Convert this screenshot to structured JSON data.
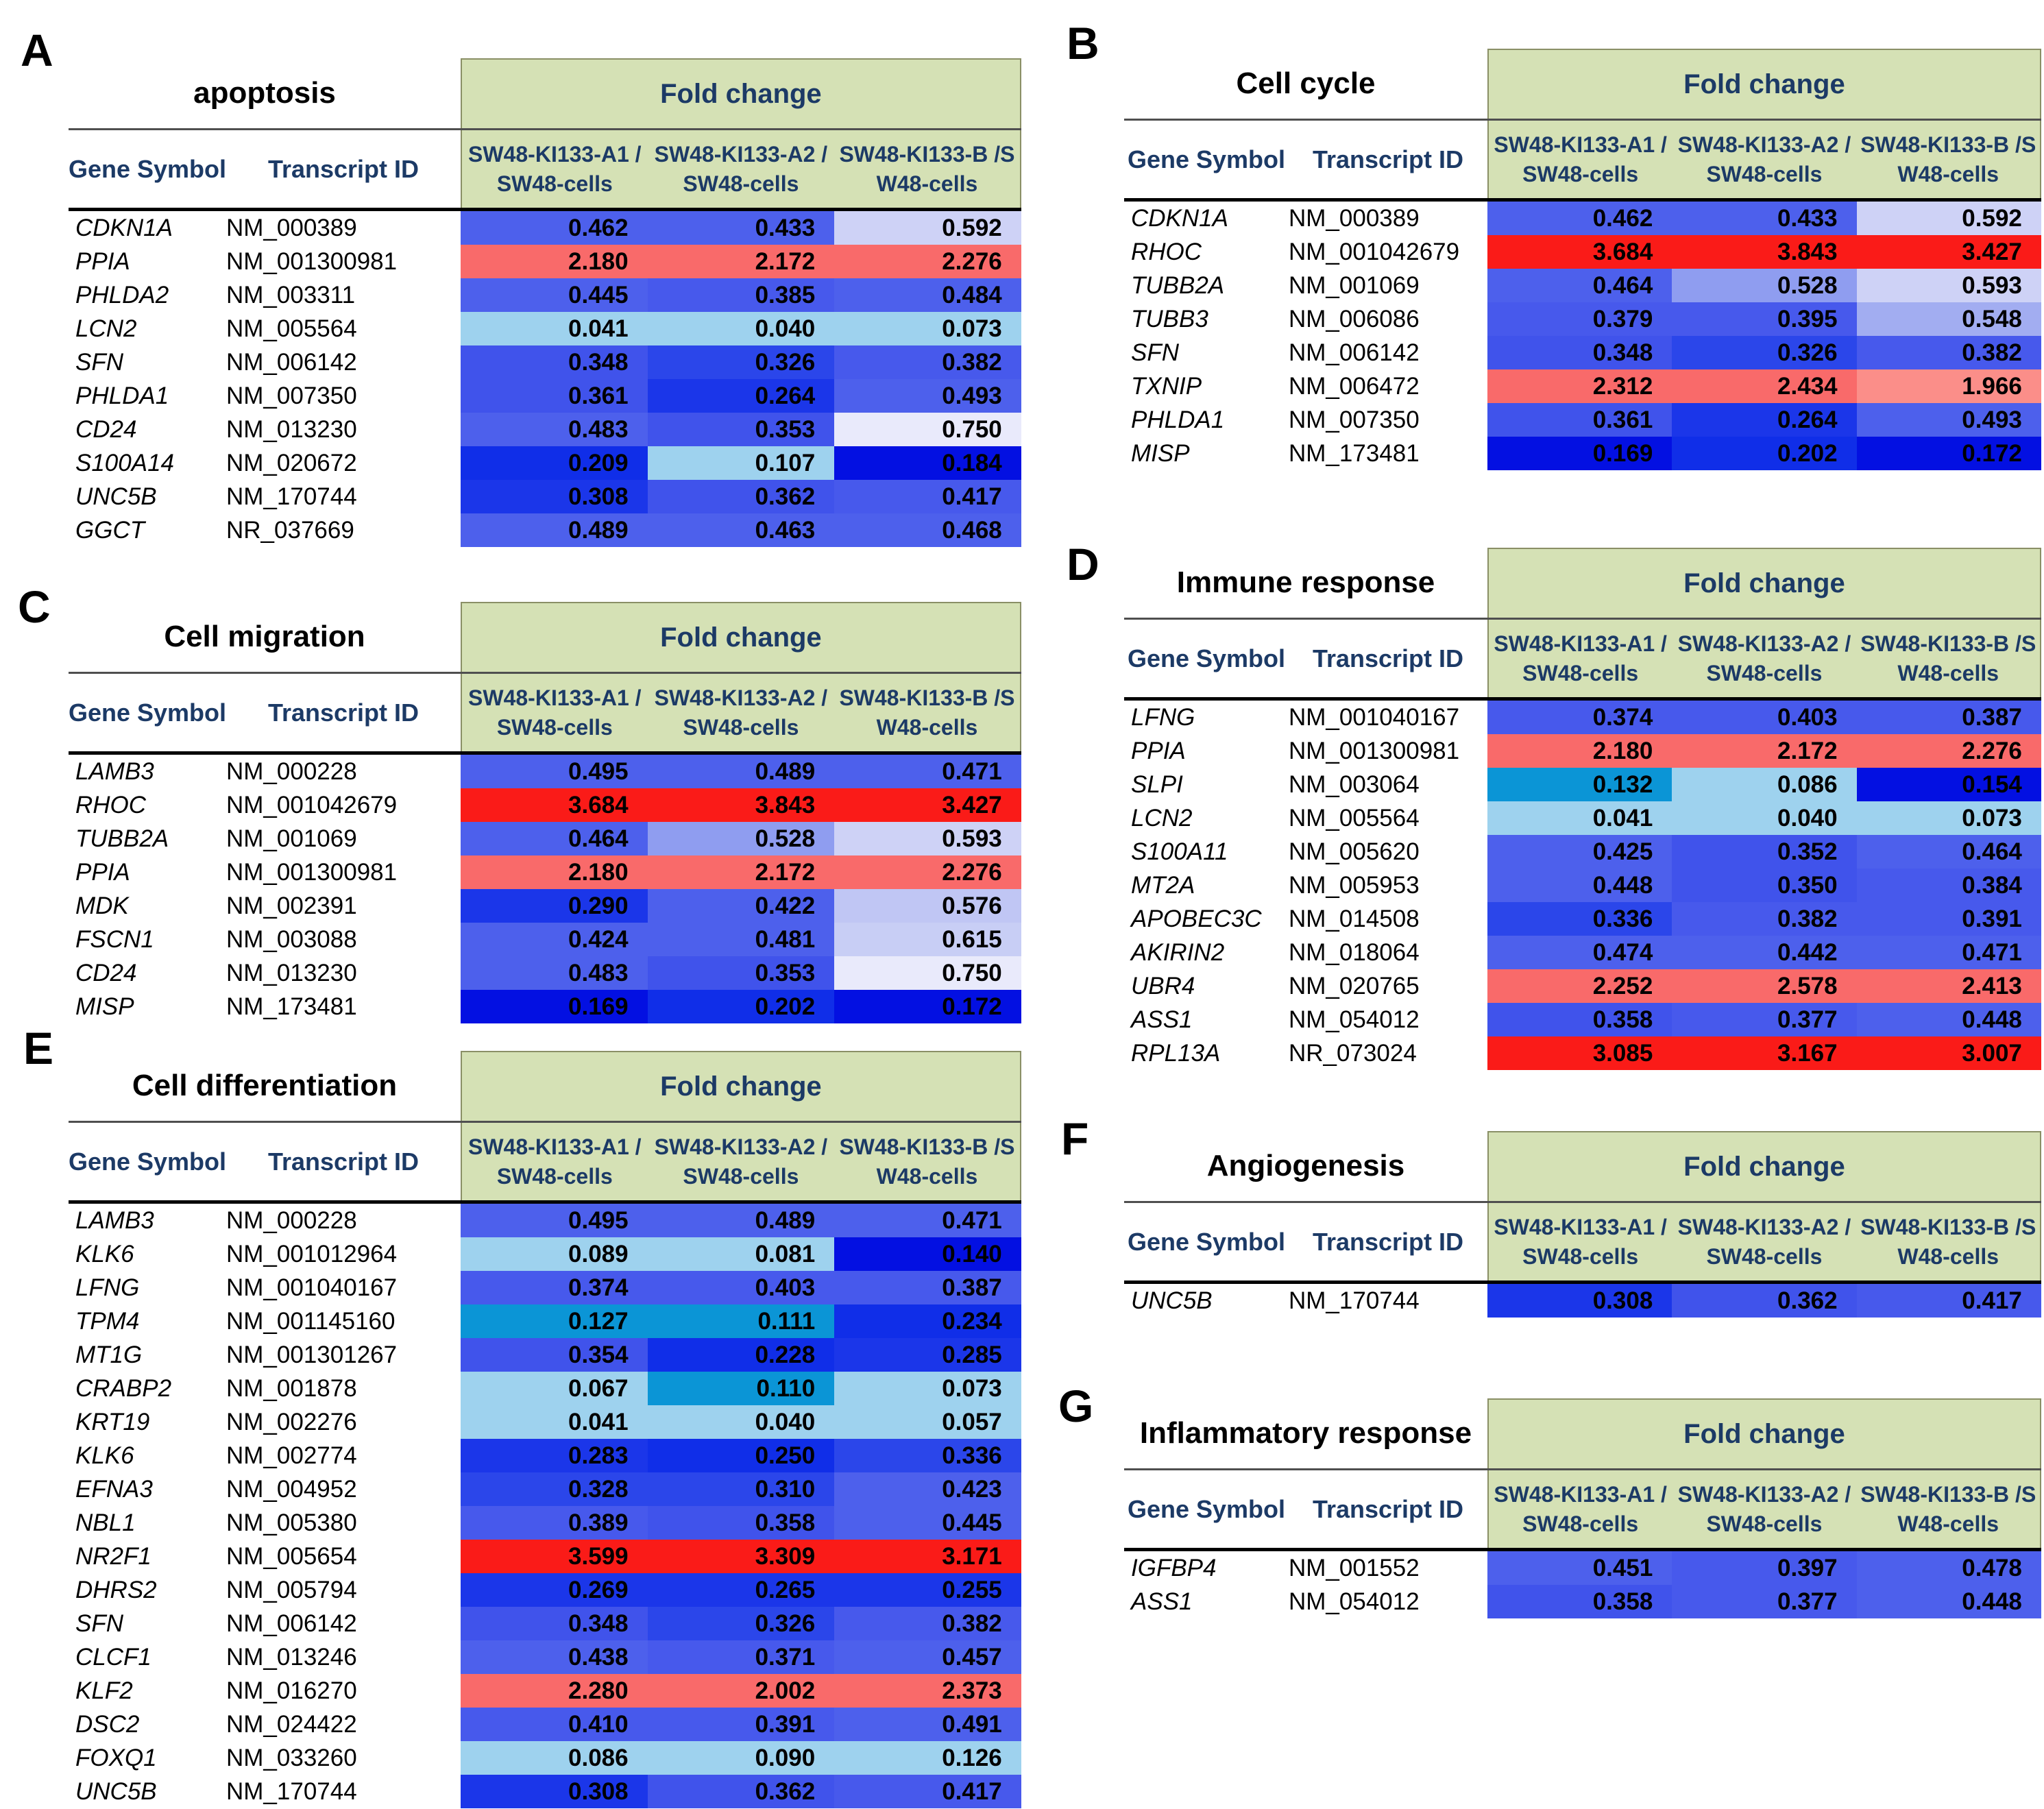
{
  "palette": {
    "red": "#fa1b18",
    "salmon": "#f96a6a",
    "lsalmon": "#fb8e89",
    "sky": "#9ed2ee",
    "cyan": "#0b95d6",
    "navy": "#0310e2",
    "blue2": "#102ee8",
    "blue3": "#1b36e9",
    "blue4": "#2b46ea",
    "blue5": "#4053eb",
    "blue6": "#4759ec",
    "blue7": "#4d60ec",
    "peri1": "#8f9df0",
    "peri2": "#a2adf1",
    "peri3": "#c0c6f4",
    "peri4": "#ced2f6",
    "peri5": "#c8cef5",
    "lav": "#e9eafb",
    "header_green": "#d5e1b5",
    "header_text_navy": "#1c3a66"
  },
  "header": {
    "fold_change_label": "Fold change",
    "gene_symbol_label": "Gene Symbol",
    "transcript_id_label": "Transcript ID",
    "col_headers": [
      {
        "line1": "SW48-KI133-A1 /",
        "line2": "SW48-cells"
      },
      {
        "line1": "SW48-KI133-A2 /",
        "line2": "SW48-cells"
      },
      {
        "line1": "SW48-KI133-B /S",
        "line2": "W48-cells"
      }
    ]
  },
  "panels": [
    {
      "letter": "A",
      "title": "apoptosis",
      "rows": [
        {
          "gene": "CDKN1A",
          "transcript": "NM_000389",
          "values": [
            "0.462",
            "0.433",
            "0.592"
          ],
          "colors": [
            "blue7",
            "blue7",
            "peri4"
          ]
        },
        {
          "gene": "PPIA",
          "transcript": "NM_001300981",
          "values": [
            "2.180",
            "2.172",
            "2.276"
          ],
          "colors": [
            "salmon",
            "salmon",
            "salmon"
          ]
        },
        {
          "gene": "PHLDA2",
          "transcript": "NM_003311",
          "values": [
            "0.445",
            "0.385",
            "0.484"
          ],
          "colors": [
            "blue7",
            "blue6",
            "blue7"
          ]
        },
        {
          "gene": "LCN2",
          "transcript": "NM_005564",
          "values": [
            "0.041",
            "0.040",
            "0.073"
          ],
          "colors": [
            "sky",
            "sky",
            "sky"
          ]
        },
        {
          "gene": "SFN",
          "transcript": "NM_006142",
          "values": [
            "0.348",
            "0.326",
            "0.382"
          ],
          "colors": [
            "blue5",
            "blue4",
            "blue6"
          ]
        },
        {
          "gene": "PHLDA1",
          "transcript": "NM_007350",
          "values": [
            "0.361",
            "0.264",
            "0.493"
          ],
          "colors": [
            "blue5",
            "blue3",
            "blue7"
          ]
        },
        {
          "gene": "CD24",
          "transcript": "NM_013230",
          "values": [
            "0.483",
            "0.353",
            "0.750"
          ],
          "colors": [
            "blue7",
            "blue5",
            "lav"
          ]
        },
        {
          "gene": "S100A14",
          "transcript": "NM_020672",
          "values": [
            "0.209",
            "0.107",
            "0.184"
          ],
          "colors": [
            "blue2",
            "sky",
            "navy"
          ]
        },
        {
          "gene": "UNC5B",
          "transcript": "NM_170744",
          "values": [
            "0.308",
            "0.362",
            "0.417"
          ],
          "colors": [
            "blue3",
            "blue5",
            "blue6"
          ]
        },
        {
          "gene": "GGCT",
          "transcript": "NR_037669",
          "values": [
            "0.489",
            "0.463",
            "0.468"
          ],
          "colors": [
            "blue7",
            "blue7",
            "blue7"
          ]
        }
      ]
    },
    {
      "letter": "B",
      "title": "Cell cycle",
      "rows": [
        {
          "gene": "CDKN1A",
          "transcript": "NM_000389",
          "values": [
            "0.462",
            "0.433",
            "0.592"
          ],
          "colors": [
            "blue7",
            "blue7",
            "peri4"
          ]
        },
        {
          "gene": "RHOC",
          "transcript": "NM_001042679",
          "values": [
            "3.684",
            "3.843",
            "3.427"
          ],
          "colors": [
            "red",
            "red",
            "red"
          ]
        },
        {
          "gene": "TUBB2A",
          "transcript": "NM_001069",
          "values": [
            "0.464",
            "0.528",
            "0.593"
          ],
          "colors": [
            "blue7",
            "peri1",
            "peri4"
          ]
        },
        {
          "gene": "TUBB3",
          "transcript": "NM_006086",
          "values": [
            "0.379",
            "0.395",
            "0.548"
          ],
          "colors": [
            "blue6",
            "blue6",
            "peri2"
          ]
        },
        {
          "gene": "SFN",
          "transcript": "NM_006142",
          "values": [
            "0.348",
            "0.326",
            "0.382"
          ],
          "colors": [
            "blue5",
            "blue4",
            "blue6"
          ]
        },
        {
          "gene": "TXNIP",
          "transcript": "NM_006472",
          "values": [
            "2.312",
            "2.434",
            "1.966"
          ],
          "colors": [
            "salmon",
            "salmon",
            "lsalmon"
          ]
        },
        {
          "gene": "PHLDA1",
          "transcript": "NM_007350",
          "values": [
            "0.361",
            "0.264",
            "0.493"
          ],
          "colors": [
            "blue5",
            "blue3",
            "blue7"
          ]
        },
        {
          "gene": "MISP",
          "transcript": "NM_173481",
          "values": [
            "0.169",
            "0.202",
            "0.172"
          ],
          "colors": [
            "navy",
            "blue2",
            "navy"
          ]
        }
      ]
    },
    {
      "letter": "C",
      "title": "Cell migration",
      "rows": [
        {
          "gene": "LAMB3",
          "transcript": "NM_000228",
          "values": [
            "0.495",
            "0.489",
            "0.471"
          ],
          "colors": [
            "blue7",
            "blue7",
            "blue7"
          ]
        },
        {
          "gene": "RHOC",
          "transcript": "NM_001042679",
          "values": [
            "3.684",
            "3.843",
            "3.427"
          ],
          "colors": [
            "red",
            "red",
            "red"
          ]
        },
        {
          "gene": "TUBB2A",
          "transcript": "NM_001069",
          "values": [
            "0.464",
            "0.528",
            "0.593"
          ],
          "colors": [
            "blue7",
            "peri1",
            "peri4"
          ]
        },
        {
          "gene": "PPIA",
          "transcript": "NM_001300981",
          "values": [
            "2.180",
            "2.172",
            "2.276"
          ],
          "colors": [
            "salmon",
            "salmon",
            "salmon"
          ]
        },
        {
          "gene": "MDK",
          "transcript": "NM_002391",
          "values": [
            "0.290",
            "0.422",
            "0.576"
          ],
          "colors": [
            "blue3",
            "blue7",
            "peri3"
          ]
        },
        {
          "gene": "FSCN1",
          "transcript": "NM_003088",
          "values": [
            "0.424",
            "0.481",
            "0.615"
          ],
          "colors": [
            "blue7",
            "blue7",
            "peri5"
          ]
        },
        {
          "gene": "CD24",
          "transcript": "NM_013230",
          "values": [
            "0.483",
            "0.353",
            "0.750"
          ],
          "colors": [
            "blue7",
            "blue5",
            "lav"
          ]
        },
        {
          "gene": "MISP",
          "transcript": "NM_173481",
          "values": [
            "0.169",
            "0.202",
            "0.172"
          ],
          "colors": [
            "navy",
            "blue2",
            "navy"
          ]
        }
      ]
    },
    {
      "letter": "D",
      "title": "Immune response",
      "rows": [
        {
          "gene": "LFNG",
          "transcript": "NM_001040167",
          "values": [
            "0.374",
            "0.403",
            "0.387"
          ],
          "colors": [
            "blue6",
            "blue6",
            "blue6"
          ]
        },
        {
          "gene": "PPIA",
          "transcript": "NM_001300981",
          "values": [
            "2.180",
            "2.172",
            "2.276"
          ],
          "colors": [
            "salmon",
            "salmon",
            "salmon"
          ]
        },
        {
          "gene": "SLPI",
          "transcript": "NM_003064",
          "values": [
            "0.132",
            "0.086",
            "0.154"
          ],
          "colors": [
            "cyan",
            "sky",
            "navy"
          ]
        },
        {
          "gene": "LCN2",
          "transcript": "NM_005564",
          "values": [
            "0.041",
            "0.040",
            "0.073"
          ],
          "colors": [
            "sky",
            "sky",
            "sky"
          ]
        },
        {
          "gene": "S100A11",
          "transcript": "NM_005620",
          "values": [
            "0.425",
            "0.352",
            "0.464"
          ],
          "colors": [
            "blue7",
            "blue5",
            "blue7"
          ]
        },
        {
          "gene": "MT2A",
          "transcript": "NM_005953",
          "values": [
            "0.448",
            "0.350",
            "0.384"
          ],
          "colors": [
            "blue7",
            "blue5",
            "blue6"
          ]
        },
        {
          "gene": "APOBEC3C",
          "transcript": "NM_014508",
          "values": [
            "0.336",
            "0.382",
            "0.391"
          ],
          "colors": [
            "blue4",
            "blue6",
            "blue6"
          ]
        },
        {
          "gene": "AKIRIN2",
          "transcript": "NM_018064",
          "values": [
            "0.474",
            "0.442",
            "0.471"
          ],
          "colors": [
            "blue7",
            "blue7",
            "blue7"
          ]
        },
        {
          "gene": "UBR4",
          "transcript": "NM_020765",
          "values": [
            "2.252",
            "2.578",
            "2.413"
          ],
          "colors": [
            "salmon",
            "salmon",
            "salmon"
          ]
        },
        {
          "gene": "ASS1",
          "transcript": "NM_054012",
          "values": [
            "0.358",
            "0.377",
            "0.448"
          ],
          "colors": [
            "blue5",
            "blue6",
            "blue7"
          ]
        },
        {
          "gene": "RPL13A",
          "transcript": "NR_073024",
          "values": [
            "3.085",
            "3.167",
            "3.007"
          ],
          "colors": [
            "red",
            "red",
            "red"
          ]
        }
      ]
    },
    {
      "letter": "E",
      "title": "Cell differentiation",
      "rows": [
        {
          "gene": "LAMB3",
          "transcript": "NM_000228",
          "values": [
            "0.495",
            "0.489",
            "0.471"
          ],
          "colors": [
            "blue7",
            "blue7",
            "blue7"
          ]
        },
        {
          "gene": "KLK6",
          "transcript": "NM_001012964",
          "values": [
            "0.089",
            "0.081",
            "0.140"
          ],
          "colors": [
            "sky",
            "sky",
            "navy"
          ]
        },
        {
          "gene": "LFNG",
          "transcript": "NM_001040167",
          "values": [
            "0.374",
            "0.403",
            "0.387"
          ],
          "colors": [
            "blue6",
            "blue6",
            "blue6"
          ]
        },
        {
          "gene": "TPM4",
          "transcript": "NM_001145160",
          "values": [
            "0.127",
            "0.111",
            "0.234"
          ],
          "colors": [
            "cyan",
            "cyan",
            "blue2"
          ]
        },
        {
          "gene": "MT1G",
          "transcript": "NM_001301267",
          "values": [
            "0.354",
            "0.228",
            "0.285"
          ],
          "colors": [
            "blue5",
            "blue2",
            "blue3"
          ]
        },
        {
          "gene": "CRABP2",
          "transcript": "NM_001878",
          "values": [
            "0.067",
            "0.110",
            "0.073"
          ],
          "colors": [
            "sky",
            "cyan",
            "sky"
          ]
        },
        {
          "gene": "KRT19",
          "transcript": "NM_002276",
          "values": [
            "0.041",
            "0.040",
            "0.057"
          ],
          "colors": [
            "sky",
            "sky",
            "sky"
          ]
        },
        {
          "gene": "KLK6",
          "transcript": "NM_002774",
          "values": [
            "0.283",
            "0.250",
            "0.336"
          ],
          "colors": [
            "blue3",
            "blue2",
            "blue4"
          ]
        },
        {
          "gene": "EFNA3",
          "transcript": "NM_004952",
          "values": [
            "0.328",
            "0.310",
            "0.423"
          ],
          "colors": [
            "blue4",
            "blue4",
            "blue7"
          ]
        },
        {
          "gene": "NBL1",
          "transcript": "NM_005380",
          "values": [
            "0.389",
            "0.358",
            "0.445"
          ],
          "colors": [
            "blue6",
            "blue5",
            "blue7"
          ]
        },
        {
          "gene": "NR2F1",
          "transcript": "NM_005654",
          "values": [
            "3.599",
            "3.309",
            "3.171"
          ],
          "colors": [
            "red",
            "red",
            "red"
          ]
        },
        {
          "gene": "DHRS2",
          "transcript": "NM_005794",
          "values": [
            "0.269",
            "0.265",
            "0.255"
          ],
          "colors": [
            "blue3",
            "blue3",
            "blue3"
          ]
        },
        {
          "gene": "SFN",
          "transcript": "NM_006142",
          "values": [
            "0.348",
            "0.326",
            "0.382"
          ],
          "colors": [
            "blue5",
            "blue4",
            "blue6"
          ]
        },
        {
          "gene": "CLCF1",
          "transcript": "NM_013246",
          "values": [
            "0.438",
            "0.371",
            "0.457"
          ],
          "colors": [
            "blue7",
            "blue6",
            "blue7"
          ]
        },
        {
          "gene": "KLF2",
          "transcript": "NM_016270",
          "values": [
            "2.280",
            "2.002",
            "2.373"
          ],
          "colors": [
            "salmon",
            "salmon",
            "salmon"
          ]
        },
        {
          "gene": "DSC2",
          "transcript": "NM_024422",
          "values": [
            "0.410",
            "0.391",
            "0.491"
          ],
          "colors": [
            "blue6",
            "blue6",
            "blue7"
          ]
        },
        {
          "gene": "FOXQ1",
          "transcript": "NM_033260",
          "values": [
            "0.086",
            "0.090",
            "0.126"
          ],
          "colors": [
            "sky",
            "sky",
            "sky"
          ]
        },
        {
          "gene": "UNC5B",
          "transcript": "NM_170744",
          "values": [
            "0.308",
            "0.362",
            "0.417"
          ],
          "colors": [
            "blue3",
            "blue5",
            "blue6"
          ]
        }
      ]
    },
    {
      "letter": "F",
      "title": "Angiogenesis",
      "rows": [
        {
          "gene": "UNC5B",
          "transcript": "NM_170744",
          "values": [
            "0.308",
            "0.362",
            "0.417"
          ],
          "colors": [
            "blue3",
            "blue5",
            "blue6"
          ]
        }
      ]
    },
    {
      "letter": "G",
      "title": "Inflammatory response",
      "rows": [
        {
          "gene": "IGFBP4",
          "transcript": "NM_001552",
          "values": [
            "0.451",
            "0.397",
            "0.478"
          ],
          "colors": [
            "blue7",
            "blue6",
            "blue7"
          ]
        },
        {
          "gene": "ASS1",
          "transcript": "NM_054012",
          "values": [
            "0.358",
            "0.377",
            "0.448"
          ],
          "colors": [
            "blue5",
            "blue6",
            "blue7"
          ]
        }
      ]
    }
  ]
}
